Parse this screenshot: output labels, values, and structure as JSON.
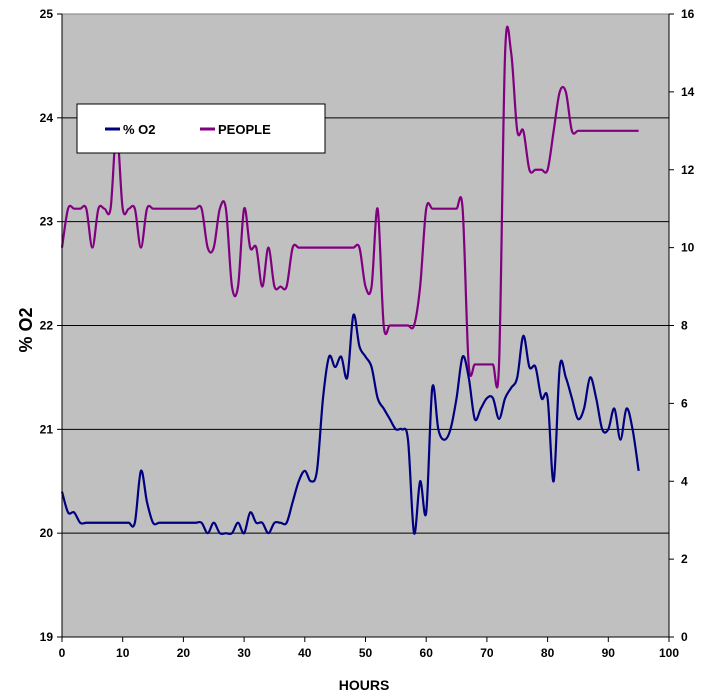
{
  "chart_data": {
    "type": "line",
    "xlabel": "HOURS",
    "ylabel": "% O2",
    "xlim": [
      0,
      100
    ],
    "ylim_left": [
      19,
      25
    ],
    "ylim_right": [
      0,
      16
    ],
    "x_ticks": [
      "0",
      "10",
      "20",
      "30",
      "40",
      "50",
      "60",
      "70",
      "80",
      "90",
      "100"
    ],
    "y_left_ticks": [
      "19",
      "20",
      "21",
      "22",
      "23",
      "24",
      "25"
    ],
    "y_right_ticks": [
      "0",
      "2",
      "4",
      "6",
      "8",
      "10",
      "12",
      "14",
      "16"
    ],
    "grid": "horizontal",
    "legend_position": "upper-left",
    "series": [
      {
        "name": "% O2",
        "axis": "left",
        "color": "#000080",
        "x": [
          0,
          1,
          2,
          3,
          4,
          5,
          6,
          7,
          8,
          9,
          10,
          11,
          12,
          13,
          14,
          15,
          16,
          17,
          18,
          19,
          20,
          21,
          22,
          23,
          24,
          25,
          26,
          27,
          28,
          29,
          30,
          31,
          32,
          33,
          34,
          35,
          36,
          37,
          38,
          39,
          40,
          41,
          42,
          43,
          44,
          45,
          46,
          47,
          48,
          49,
          50,
          51,
          52,
          53,
          54,
          55,
          56,
          57,
          58,
          59,
          60,
          61,
          62,
          63,
          64,
          65,
          66,
          67,
          68,
          69,
          70,
          71,
          72,
          73,
          74,
          75,
          76,
          77,
          78,
          79,
          80,
          81,
          82,
          83,
          84,
          85,
          86,
          87,
          88,
          89,
          90,
          91,
          92,
          93,
          94,
          95
        ],
        "y": [
          20.4,
          20.2,
          20.2,
          20.1,
          20.1,
          20.1,
          20.1,
          20.1,
          20.1,
          20.1,
          20.1,
          20.1,
          20.1,
          20.6,
          20.3,
          20.1,
          20.1,
          20.1,
          20.1,
          20.1,
          20.1,
          20.1,
          20.1,
          20.1,
          20.0,
          20.1,
          20.0,
          20.0,
          20.0,
          20.1,
          20.0,
          20.2,
          20.1,
          20.1,
          20.0,
          20.1,
          20.1,
          20.1,
          20.3,
          20.5,
          20.6,
          20.5,
          20.6,
          21.3,
          21.7,
          21.6,
          21.7,
          21.5,
          22.1,
          21.8,
          21.7,
          21.6,
          21.3,
          21.2,
          21.1,
          21.0,
          21.0,
          20.9,
          20.0,
          20.5,
          20.2,
          21.4,
          21.0,
          20.9,
          21.0,
          21.3,
          21.7,
          21.5,
          21.1,
          21.2,
          21.3,
          21.3,
          21.1,
          21.3,
          21.4,
          21.5,
          21.9,
          21.6,
          21.6,
          21.3,
          21.3,
          20.5,
          21.6,
          21.5,
          21.3,
          21.1,
          21.2,
          21.5,
          21.3,
          21.0,
          21.0,
          21.2,
          20.9,
          21.2,
          21.0,
          20.6
        ]
      },
      {
        "name": "PEOPLE",
        "axis": "right",
        "color": "#800080",
        "x": [
          0,
          1,
          2,
          3,
          4,
          5,
          6,
          7,
          8,
          9,
          10,
          11,
          12,
          13,
          14,
          15,
          16,
          17,
          18,
          19,
          20,
          21,
          22,
          23,
          24,
          25,
          26,
          27,
          28,
          29,
          30,
          31,
          32,
          33,
          34,
          35,
          36,
          37,
          38,
          39,
          40,
          41,
          42,
          43,
          44,
          45,
          46,
          47,
          48,
          49,
          50,
          51,
          52,
          53,
          54,
          55,
          56,
          57,
          58,
          59,
          60,
          61,
          62,
          63,
          64,
          65,
          66,
          67,
          68,
          69,
          70,
          71,
          72,
          73,
          74,
          75,
          76,
          77,
          78,
          79,
          80,
          81,
          82,
          83,
          84,
          85,
          86,
          87,
          88,
          89,
          90,
          91,
          92,
          93,
          94,
          95
        ],
        "y": [
          10,
          11,
          11,
          11,
          11,
          10,
          11,
          11,
          11,
          13,
          11,
          11,
          11,
          10,
          11,
          11,
          11,
          11,
          11,
          11,
          11,
          11,
          11,
          11,
          10,
          10,
          11,
          11,
          9,
          9,
          11,
          10,
          10,
          9,
          10,
          9,
          9,
          9,
          10,
          10,
          10,
          10,
          10,
          10,
          10,
          10,
          10,
          10,
          10,
          10,
          9,
          9,
          11,
          8,
          8,
          8,
          8,
          8,
          8,
          9,
          11,
          11,
          11,
          11,
          11,
          11,
          11,
          7,
          7,
          7,
          7,
          7,
          7,
          15,
          15,
          13,
          13,
          12,
          12,
          12,
          12,
          13,
          14,
          14,
          13,
          13,
          13,
          13,
          13,
          13,
          13,
          13,
          13,
          13,
          13,
          13
        ]
      }
    ]
  }
}
